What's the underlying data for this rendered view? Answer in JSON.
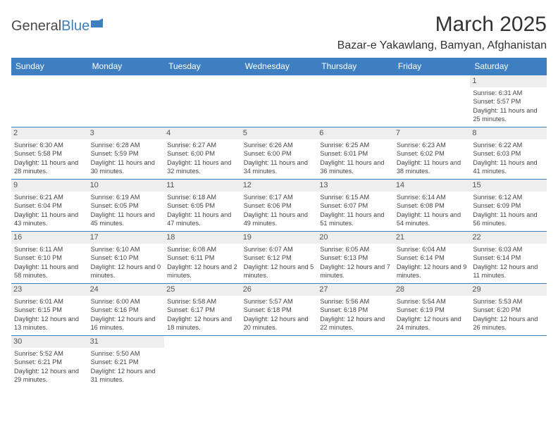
{
  "logo": {
    "text1": "General",
    "text2": "Blue"
  },
  "title": "March 2025",
  "location": "Bazar-e Yakawlang, Bamyan, Afghanistan",
  "colors": {
    "header_bg": "#3d7fc0",
    "header_fg": "#ffffff",
    "daynum_bg": "#eeeeee",
    "border": "#3d7fc0",
    "page_bg": "#ffffff"
  },
  "fonts": {
    "title_pt": 30,
    "location_pt": 16,
    "dayhead_pt": 12,
    "daynum_pt": 11,
    "body_pt": 9.2
  },
  "days": [
    "Sunday",
    "Monday",
    "Tuesday",
    "Wednesday",
    "Thursday",
    "Friday",
    "Saturday"
  ],
  "cells": [
    {
      "n": "",
      "sr": "",
      "ss": "",
      "dl": ""
    },
    {
      "n": "",
      "sr": "",
      "ss": "",
      "dl": ""
    },
    {
      "n": "",
      "sr": "",
      "ss": "",
      "dl": ""
    },
    {
      "n": "",
      "sr": "",
      "ss": "",
      "dl": ""
    },
    {
      "n": "",
      "sr": "",
      "ss": "",
      "dl": ""
    },
    {
      "n": "",
      "sr": "",
      "ss": "",
      "dl": ""
    },
    {
      "n": "1",
      "sr": "Sunrise: 6:31 AM",
      "ss": "Sunset: 5:57 PM",
      "dl": "Daylight: 11 hours and 25 minutes."
    },
    {
      "n": "2",
      "sr": "Sunrise: 6:30 AM",
      "ss": "Sunset: 5:58 PM",
      "dl": "Daylight: 11 hours and 28 minutes."
    },
    {
      "n": "3",
      "sr": "Sunrise: 6:28 AM",
      "ss": "Sunset: 5:59 PM",
      "dl": "Daylight: 11 hours and 30 minutes."
    },
    {
      "n": "4",
      "sr": "Sunrise: 6:27 AM",
      "ss": "Sunset: 6:00 PM",
      "dl": "Daylight: 11 hours and 32 minutes."
    },
    {
      "n": "5",
      "sr": "Sunrise: 6:26 AM",
      "ss": "Sunset: 6:00 PM",
      "dl": "Daylight: 11 hours and 34 minutes."
    },
    {
      "n": "6",
      "sr": "Sunrise: 6:25 AM",
      "ss": "Sunset: 6:01 PM",
      "dl": "Daylight: 11 hours and 36 minutes."
    },
    {
      "n": "7",
      "sr": "Sunrise: 6:23 AM",
      "ss": "Sunset: 6:02 PM",
      "dl": "Daylight: 11 hours and 38 minutes."
    },
    {
      "n": "8",
      "sr": "Sunrise: 6:22 AM",
      "ss": "Sunset: 6:03 PM",
      "dl": "Daylight: 11 hours and 41 minutes."
    },
    {
      "n": "9",
      "sr": "Sunrise: 6:21 AM",
      "ss": "Sunset: 6:04 PM",
      "dl": "Daylight: 11 hours and 43 minutes."
    },
    {
      "n": "10",
      "sr": "Sunrise: 6:19 AM",
      "ss": "Sunset: 6:05 PM",
      "dl": "Daylight: 11 hours and 45 minutes."
    },
    {
      "n": "11",
      "sr": "Sunrise: 6:18 AM",
      "ss": "Sunset: 6:05 PM",
      "dl": "Daylight: 11 hours and 47 minutes."
    },
    {
      "n": "12",
      "sr": "Sunrise: 6:17 AM",
      "ss": "Sunset: 6:06 PM",
      "dl": "Daylight: 11 hours and 49 minutes."
    },
    {
      "n": "13",
      "sr": "Sunrise: 6:15 AM",
      "ss": "Sunset: 6:07 PM",
      "dl": "Daylight: 11 hours and 51 minutes."
    },
    {
      "n": "14",
      "sr": "Sunrise: 6:14 AM",
      "ss": "Sunset: 6:08 PM",
      "dl": "Daylight: 11 hours and 54 minutes."
    },
    {
      "n": "15",
      "sr": "Sunrise: 6:12 AM",
      "ss": "Sunset: 6:09 PM",
      "dl": "Daylight: 11 hours and 56 minutes."
    },
    {
      "n": "16",
      "sr": "Sunrise: 6:11 AM",
      "ss": "Sunset: 6:10 PM",
      "dl": "Daylight: 11 hours and 58 minutes."
    },
    {
      "n": "17",
      "sr": "Sunrise: 6:10 AM",
      "ss": "Sunset: 6:10 PM",
      "dl": "Daylight: 12 hours and 0 minutes."
    },
    {
      "n": "18",
      "sr": "Sunrise: 6:08 AM",
      "ss": "Sunset: 6:11 PM",
      "dl": "Daylight: 12 hours and 2 minutes."
    },
    {
      "n": "19",
      "sr": "Sunrise: 6:07 AM",
      "ss": "Sunset: 6:12 PM",
      "dl": "Daylight: 12 hours and 5 minutes."
    },
    {
      "n": "20",
      "sr": "Sunrise: 6:05 AM",
      "ss": "Sunset: 6:13 PM",
      "dl": "Daylight: 12 hours and 7 minutes."
    },
    {
      "n": "21",
      "sr": "Sunrise: 6:04 AM",
      "ss": "Sunset: 6:14 PM",
      "dl": "Daylight: 12 hours and 9 minutes."
    },
    {
      "n": "22",
      "sr": "Sunrise: 6:03 AM",
      "ss": "Sunset: 6:14 PM",
      "dl": "Daylight: 12 hours and 11 minutes."
    },
    {
      "n": "23",
      "sr": "Sunrise: 6:01 AM",
      "ss": "Sunset: 6:15 PM",
      "dl": "Daylight: 12 hours and 13 minutes."
    },
    {
      "n": "24",
      "sr": "Sunrise: 6:00 AM",
      "ss": "Sunset: 6:16 PM",
      "dl": "Daylight: 12 hours and 16 minutes."
    },
    {
      "n": "25",
      "sr": "Sunrise: 5:58 AM",
      "ss": "Sunset: 6:17 PM",
      "dl": "Daylight: 12 hours and 18 minutes."
    },
    {
      "n": "26",
      "sr": "Sunrise: 5:57 AM",
      "ss": "Sunset: 6:18 PM",
      "dl": "Daylight: 12 hours and 20 minutes."
    },
    {
      "n": "27",
      "sr": "Sunrise: 5:56 AM",
      "ss": "Sunset: 6:18 PM",
      "dl": "Daylight: 12 hours and 22 minutes."
    },
    {
      "n": "28",
      "sr": "Sunrise: 5:54 AM",
      "ss": "Sunset: 6:19 PM",
      "dl": "Daylight: 12 hours and 24 minutes."
    },
    {
      "n": "29",
      "sr": "Sunrise: 5:53 AM",
      "ss": "Sunset: 6:20 PM",
      "dl": "Daylight: 12 hours and 26 minutes."
    },
    {
      "n": "30",
      "sr": "Sunrise: 5:52 AM",
      "ss": "Sunset: 6:21 PM",
      "dl": "Daylight: 12 hours and 29 minutes."
    },
    {
      "n": "31",
      "sr": "Sunrise: 5:50 AM",
      "ss": "Sunset: 6:21 PM",
      "dl": "Daylight: 12 hours and 31 minutes."
    },
    {
      "n": "",
      "sr": "",
      "ss": "",
      "dl": ""
    },
    {
      "n": "",
      "sr": "",
      "ss": "",
      "dl": ""
    },
    {
      "n": "",
      "sr": "",
      "ss": "",
      "dl": ""
    },
    {
      "n": "",
      "sr": "",
      "ss": "",
      "dl": ""
    },
    {
      "n": "",
      "sr": "",
      "ss": "",
      "dl": ""
    }
  ]
}
